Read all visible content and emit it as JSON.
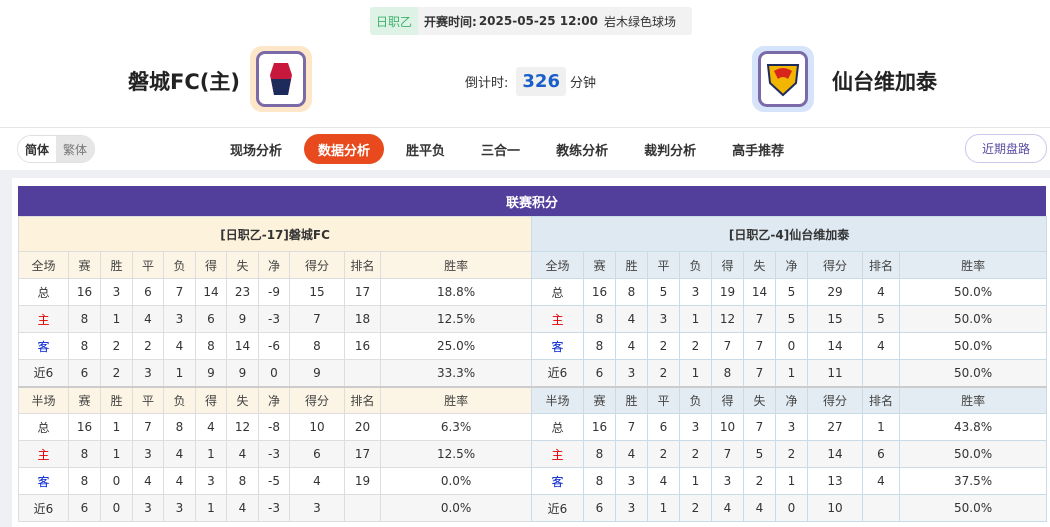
{
  "match": {
    "league": "日职乙",
    "time_label": "开赛时间:",
    "time": "2025-05-25 12:00",
    "venue": "岩木绿色球场"
  },
  "home": {
    "name": "磐城FC(主)",
    "logo_bg": "#fde7c8"
  },
  "away": {
    "name": "仙台维加泰",
    "logo_bg": "#d6e4fb"
  },
  "countdown": {
    "label": "倒计时:",
    "value": "326",
    "unit": "分钟"
  },
  "lang": {
    "simplified": "简体",
    "traditional": "繁体"
  },
  "tabs": [
    "现场分析",
    "数据分析",
    "胜平负",
    "三合一",
    "教练分析",
    "裁判分析",
    "高手推荐"
  ],
  "active_tab": "数据分析",
  "recent_button": "近期盘路",
  "section_title": "联赛积分",
  "columns": [
    "赛",
    "胜",
    "平",
    "负",
    "得",
    "失",
    "净",
    "得分",
    "排名",
    "胜率"
  ],
  "full_label": "全场",
  "half_label": "半场",
  "tables": [
    {
      "caption": "[日职乙-17]磐城FC",
      "full": [
        [
          "总",
          "16",
          "3",
          "6",
          "7",
          "14",
          "23",
          "-9",
          "15",
          "17",
          "18.8%"
        ],
        [
          "主",
          "8",
          "1",
          "4",
          "3",
          "6",
          "9",
          "-3",
          "7",
          "18",
          "12.5%"
        ],
        [
          "客",
          "8",
          "2",
          "2",
          "4",
          "8",
          "14",
          "-6",
          "8",
          "16",
          "25.0%"
        ],
        [
          "近6",
          "6",
          "2",
          "3",
          "1",
          "9",
          "9",
          "0",
          "9",
          "",
          "33.3%"
        ]
      ],
      "half": [
        [
          "总",
          "16",
          "1",
          "7",
          "8",
          "4",
          "12",
          "-8",
          "10",
          "20",
          "6.3%"
        ],
        [
          "主",
          "8",
          "1",
          "3",
          "4",
          "1",
          "4",
          "-3",
          "6",
          "17",
          "12.5%"
        ],
        [
          "客",
          "8",
          "0",
          "4",
          "4",
          "3",
          "8",
          "-5",
          "4",
          "19",
          "0.0%"
        ],
        [
          "近6",
          "6",
          "0",
          "3",
          "3",
          "1",
          "4",
          "-3",
          "3",
          "",
          "0.0%"
        ]
      ]
    },
    {
      "caption": "[日职乙-4]仙台维加泰",
      "full": [
        [
          "总",
          "16",
          "8",
          "5",
          "3",
          "19",
          "14",
          "5",
          "29",
          "4",
          "50.0%"
        ],
        [
          "主",
          "8",
          "4",
          "3",
          "1",
          "12",
          "7",
          "5",
          "15",
          "5",
          "50.0%"
        ],
        [
          "客",
          "8",
          "4",
          "2",
          "2",
          "7",
          "7",
          "0",
          "14",
          "4",
          "50.0%"
        ],
        [
          "近6",
          "6",
          "3",
          "2",
          "1",
          "8",
          "7",
          "1",
          "11",
          "",
          "50.0%"
        ]
      ],
      "half": [
        [
          "总",
          "16",
          "7",
          "6",
          "3",
          "10",
          "7",
          "3",
          "27",
          "1",
          "43.8%"
        ],
        [
          "主",
          "8",
          "4",
          "2",
          "2",
          "7",
          "5",
          "2",
          "14",
          "6",
          "50.0%"
        ],
        [
          "客",
          "8",
          "3",
          "4",
          "1",
          "3",
          "2",
          "1",
          "13",
          "4",
          "37.5%"
        ],
        [
          "近6",
          "6",
          "3",
          "1",
          "2",
          "4",
          "4",
          "0",
          "10",
          "",
          "50.0%"
        ]
      ]
    }
  ]
}
